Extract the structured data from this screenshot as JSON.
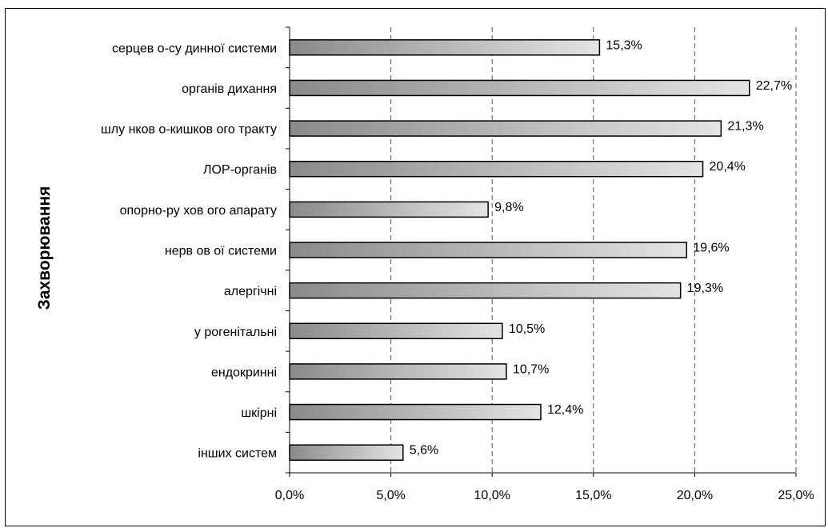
{
  "chart_data": {
    "type": "bar",
    "orientation": "horizontal",
    "ylabel": "Захворювання",
    "xlabel": "",
    "categories": [
      "серцев о-су динної системи",
      "органів дихання",
      "шлу нков о-кишков ого тракту",
      "ЛОР-органів",
      "опорно-ру хов ого апарату",
      "нерв ов ої системи",
      "алергічні",
      "у рогенітальні",
      "ендокринні",
      "шкірні",
      "інших систем"
    ],
    "values": [
      15.3,
      22.7,
      21.3,
      20.4,
      9.8,
      19.6,
      19.3,
      10.5,
      10.7,
      12.4,
      5.6
    ],
    "data_labels": [
      "15,3%",
      "22,7%",
      "21,3%",
      "20,4%",
      "9,8%",
      "19,6%",
      "19,3%",
      "10,5%",
      "10,7%",
      "12,4%",
      "5,6%"
    ],
    "xlim": [
      0,
      25
    ],
    "x_ticks": [
      0,
      5,
      10,
      15,
      20,
      25
    ],
    "x_tick_labels": [
      "0,0%",
      "5,0%",
      "10,0%",
      "15,0%",
      "20,0%",
      "25,0%"
    ],
    "grid": "vertical dashed",
    "legend": "none",
    "colors": {
      "bar_dark": "#8a8a8a",
      "bar_light": "#e4e4e4",
      "bar_border": "#000000",
      "grid": "#555555"
    }
  }
}
